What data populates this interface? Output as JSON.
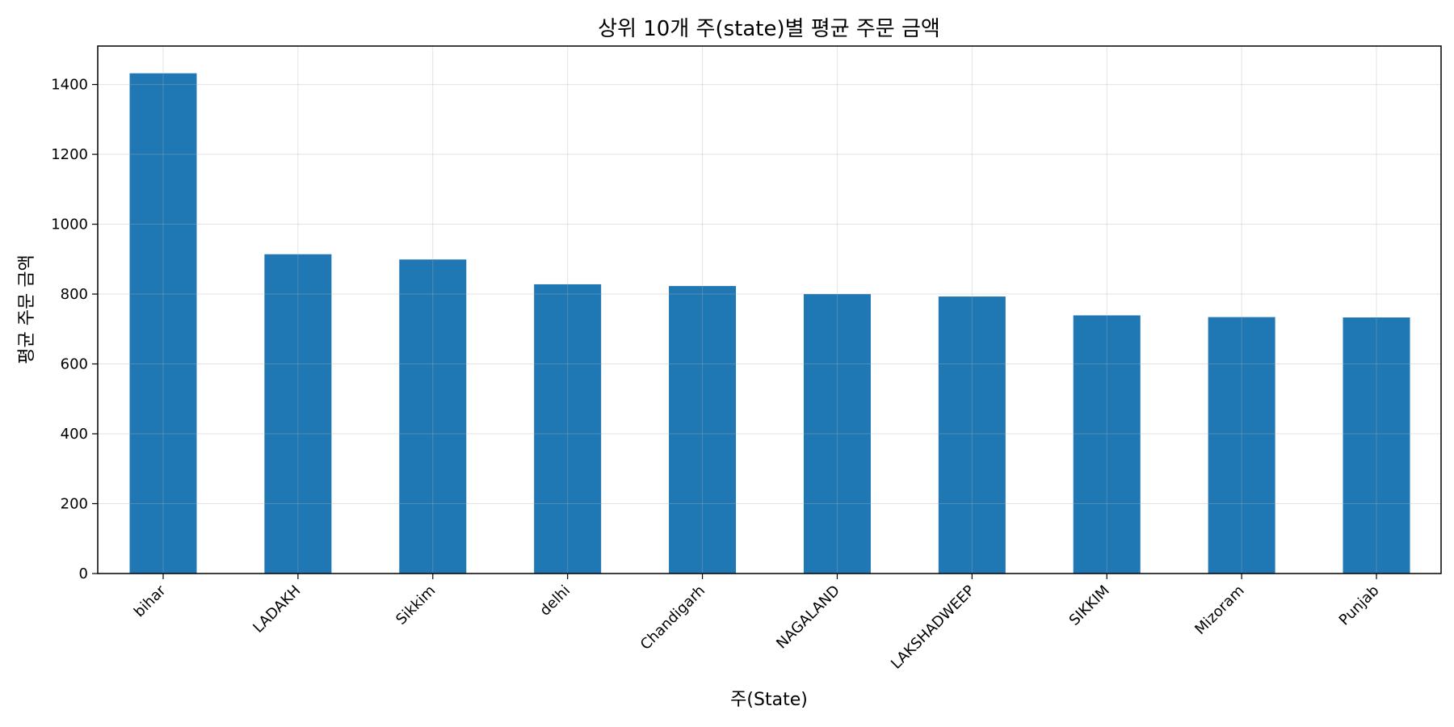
{
  "chart_data": {
    "type": "bar",
    "title": "상위 10개 주(state)별 평균 주문 금액",
    "xlabel": "주(State)",
    "ylabel": "평균 주문 금액",
    "categories": [
      "bihar",
      "LADAKH",
      "Sikkim",
      "delhi",
      "Chandigarh",
      "NAGALAND",
      "LAKSHADWEEP",
      "SIKKIM",
      "Mizoram",
      "Punjab"
    ],
    "values": [
      1432,
      914,
      899,
      828,
      823,
      800,
      793,
      739,
      734,
      733
    ],
    "ylim": [
      0,
      1510
    ],
    "yticks": [
      0,
      200,
      400,
      600,
      800,
      1000,
      1200,
      1400
    ],
    "grid": true,
    "bar_color": "#1f77b4"
  }
}
